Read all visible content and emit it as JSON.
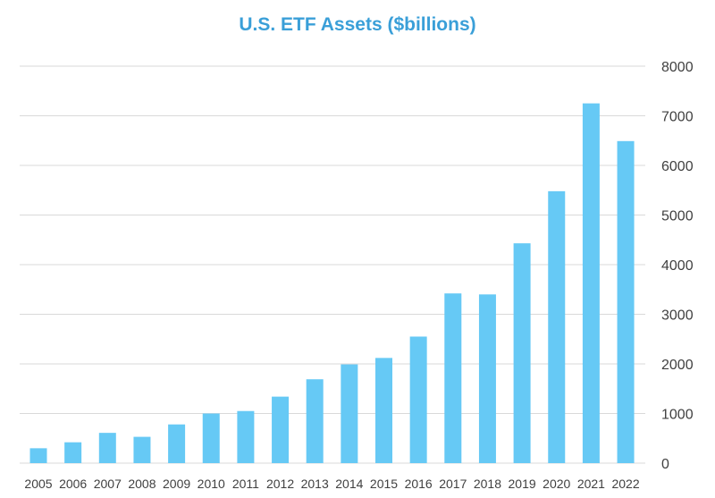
{
  "colors": {
    "bar": "#66c9f5",
    "title": "#3a9fd8",
    "grid": "#d9d9d9",
    "text": "#404040"
  },
  "chart_data": {
    "type": "bar",
    "title": "U.S. ETF Assets ($billions)",
    "xlabel": "",
    "ylabel": "",
    "ylim": [
      0,
      8000
    ],
    "y_ticks": [
      0,
      1000,
      2000,
      3000,
      4000,
      5000,
      6000,
      7000,
      8000
    ],
    "y_axis_side": "right",
    "grid": true,
    "categories": [
      "2005",
      "2006",
      "2007",
      "2008",
      "2009",
      "2010",
      "2011",
      "2012",
      "2013",
      "2014",
      "2015",
      "2016",
      "2017",
      "2018",
      "2019",
      "2020",
      "2021",
      "2022"
    ],
    "values": [
      300,
      420,
      610,
      530,
      780,
      1000,
      1050,
      1340,
      1690,
      1990,
      2120,
      2550,
      3420,
      3400,
      4430,
      5480,
      7250,
      6490
    ]
  }
}
